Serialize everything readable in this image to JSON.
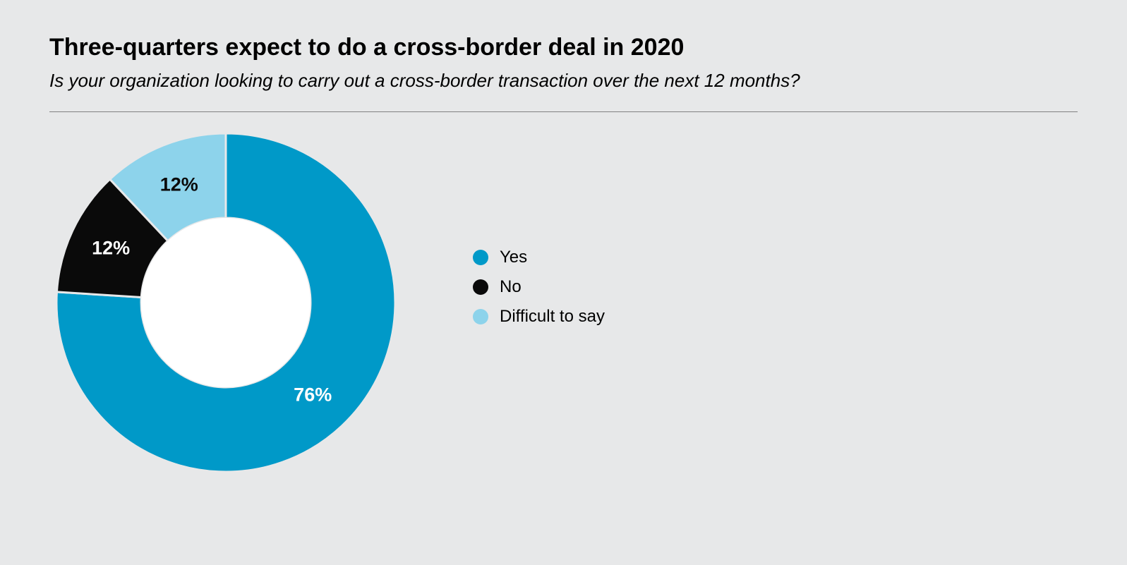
{
  "page": {
    "background_color": "#e7e8e9"
  },
  "header": {
    "title": "Three-quarters expect to do a cross-border deal in 2020",
    "title_fontsize": 34,
    "title_weight": 700,
    "subtitle": "Is your organization looking to carry out a cross-border transaction over the next 12 months?",
    "subtitle_fontsize": 26,
    "divider_color": "#808080"
  },
  "chart": {
    "type": "donut",
    "outer_radius": 240,
    "inner_radius": 120,
    "center_fill": "#ffffff",
    "start_angle_deg": -90,
    "direction": "clockwise",
    "gap_color": "#e7e8e9",
    "gap_width": 3,
    "slices": [
      {
        "name": "yes",
        "label": "Yes",
        "value": 76,
        "color": "#0099c8",
        "text_color": "#ffffff",
        "percent_text": "76%"
      },
      {
        "name": "no",
        "label": "No",
        "value": 12,
        "color": "#0a0a0a",
        "text_color": "#ffffff",
        "percent_text": "12%"
      },
      {
        "name": "difficult-to-say",
        "label": "Difficult to say",
        "value": 12,
        "color": "#8dd3eb",
        "text_color": "#0a0a0a",
        "percent_text": "12%"
      }
    ],
    "label_fontsize": 27,
    "label_weight": 700
  },
  "legend": {
    "fontsize": 24,
    "dot_size": 22,
    "item_gap": 14
  }
}
